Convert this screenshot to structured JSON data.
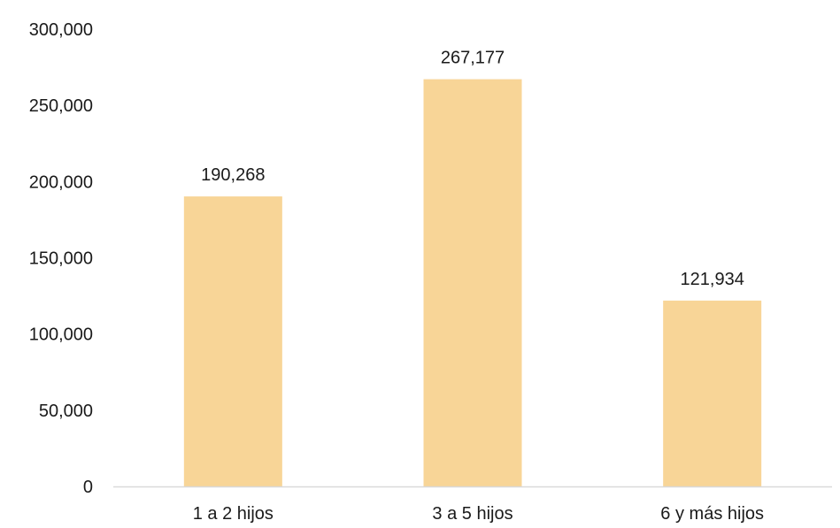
{
  "chart_data": {
    "type": "bar",
    "categories": [
      "1 a 2 hijos",
      "3 a 5 hijos",
      "6 y más hijos"
    ],
    "values": [
      190268,
      267177,
      121934
    ],
    "data_labels": [
      "190,268",
      "267,177",
      "121,934"
    ],
    "ylim": [
      0,
      300000
    ],
    "yticks": [
      0,
      50000,
      100000,
      150000,
      200000,
      250000,
      300000
    ],
    "ytick_labels": [
      "0",
      "50,000",
      "100,000",
      "150,000",
      "200,000",
      "250,000",
      "300,000"
    ],
    "grid": false,
    "legend": "none",
    "bar_color": "#F8D597",
    "axis_color": "#D9D9D9",
    "text_color": "#1a1a1a"
  }
}
